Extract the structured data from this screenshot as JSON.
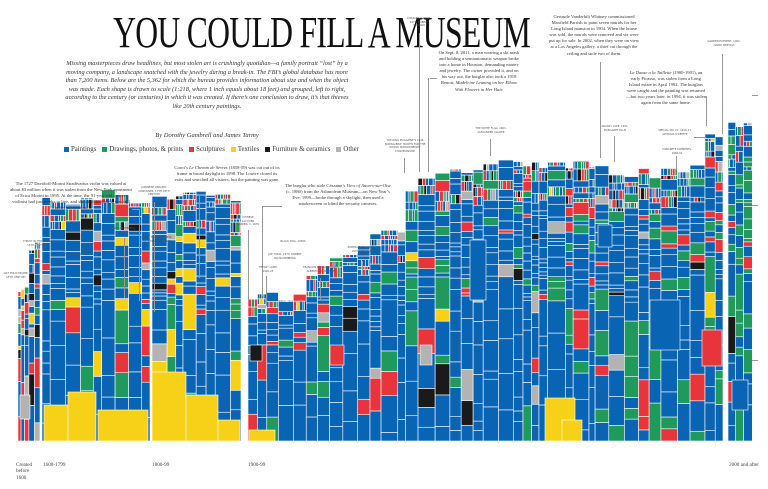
{
  "header": {
    "title": "YOU COULD FILL A MUSEUM",
    "subtitle": "Missing masterpieces draw headlines, but most stolen art is crushingly quotidian—a family portrait “lost” by a moving company, a landscape snatched with the jewelry during a break-in. The FBI’s global database has more than 7,200 items. Below are the 5,362 for which the bureau provides information about size and when the object was made. Each shape is drawn to scale (1:218, where 1 inch equals about 18 feet) and grouped, left to right, according to the century (or centuries) in which it was created. If there’s one conclusion to draw, it’s that thieves like 20th century paintings.",
    "byline": "By Dorothy Gambrell and James Tarmy"
  },
  "legend": [
    {
      "label": "Paintings",
      "color": "#0a64b4"
    },
    {
      "label": "Drawings, photos, & prints",
      "color": "#1f9a5c"
    },
    {
      "label": "Sculptures",
      "color": "#e8343b"
    },
    {
      "label": "Textiles",
      "color": "#f7d117"
    },
    {
      "label": "Furniture & ceramics",
      "color": "#1a1a1a"
    },
    {
      "label": "Other",
      "color": "#b3b3b3"
    }
  ],
  "chart_data": {
    "type": "treemap",
    "title": "YOU COULD FILL A MUSEUM",
    "categories": [
      "Created before 1600",
      "1600-1799",
      "1800-99",
      "1900-99",
      "2000 and after"
    ],
    "series": [
      {
        "name": "Paintings"
      },
      {
        "name": "Drawings, photos, & prints"
      },
      {
        "name": "Sculptures"
      },
      {
        "name": "Textiles"
      },
      {
        "name": "Furniture & ceramics"
      },
      {
        "name": "Other"
      }
    ],
    "scale": "1:218"
  },
  "axis": {
    "before_1600": "Created before 1600",
    "c1600_1799": "1600-1799",
    "c1800s": "1800-99",
    "c1900s": "1900-99",
    "c2000": "2000 and after"
  },
  "notes": [
    {
      "id": "stradivarius",
      "parts": [
        {
          "t": "The 1727 Davidoff-Morini Stradivarius violin was valued at about $3 million when it was stolen from the New York apartment of Erica Morini in 1995. At the time, the 91-year-old concert violinist had just weeks to live, and she died thinking it was still in her possession."
        }
      ]
    },
    {
      "id": "corot",
      "parts": [
        {
          "t": "Corot’s "
        },
        {
          "t": "Le Chemin de Sèvres",
          "i": true
        },
        {
          "t": " (1858-59) was cut out of its frame in broad daylight in 1998. The Louvre closed its exits and searched all visitors, but the painting was gone."
        }
      ]
    },
    {
      "id": "cezanne",
      "parts": [
        {
          "t": "The burglar who stole Cézanne’s "
        },
        {
          "t": "View of Auvers-sur-Oise",
          "i": true
        },
        {
          "t": " (c. 1880) from the Ashmolean Museum—on New Year’s Eve, 1999—broke through a skylight, then used a smokescreen to blind the security cameras."
        }
      ]
    },
    {
      "id": "renoir",
      "parts": [
        {
          "t": "On Sept. 8, 2011, a man wearing a ski mask and holding a semiautomatic weapon broke into a home in Houston, demanding money and jewelry. The owner provided it, and on his way out, the burglar also took a 1918 Renoir, "
        },
        {
          "t": "Madeleine Leaning on her Elbow With Flowers in Her Hair.",
          "i": true
        }
      ]
    },
    {
      "id": "parrish",
      "parts": [
        {
          "t": "Gertrude Vanderbilt Whitney commissioned Maxfield Parrish to paint seven murals for her Long Island mansion in 1904. When the house was sold, the murals were removed and six were put up for sale. In 2002, when they were on view at a Los Angeles gallery, a thief cut through the ceiling and stole two of them."
        }
      ]
    },
    {
      "id": "picasso",
      "parts": [
        {
          "t": "La Danse a la Taillette",
          "i": true
        },
        {
          "t": " (1900-1901), an early Picasso, was stolen from a Long Island estate in April 1992. The burglars were caught and the painting was returned—but two years later, in 1994, it was stolen again from the same home."
        }
      ]
    }
  ],
  "tags": [
    {
      "id": "japanese",
      "text": "Japanese ceramic container, 17th-18th century"
    },
    {
      "id": "teapot",
      "text": "Twelve-ten tea, 1860s"
    },
    {
      "id": "egret",
      "text": "Great egret, c. 1830-32, John J. Audubon"
    },
    {
      "id": "lacquer",
      "text": "Chinese lacquer screen, c. 1670"
    },
    {
      "id": "blackdog",
      "text": "Black dog, 1950s"
    },
    {
      "id": "rauschenberg",
      "text": "Joe Toma, 1973, Robert Rauschenberg"
    },
    {
      "id": "tiffany",
      "text": "Tiffany lamp, 1920-25"
    },
    {
      "id": "giacometti",
      "text": "François Bernard, 1951, Alberto Giacometti"
    },
    {
      "id": "cassatt",
      "text": "Portrait of a girl, c. 1875-1880, Mary Cassatt"
    },
    {
      "id": "belt",
      "text": "The Ring magazine’s 1946 boxing belt trophy for the world middleweight championship"
    },
    {
      "id": "chaparral",
      "text": "Chaparral etch, 1971, Robert Graham"
    },
    {
      "id": "calder",
      "text": "The white flag, 1961, Alexander Calder"
    },
    {
      "id": "ellis",
      "text": "Grassy lake, 1951, Margaret Ellis"
    },
    {
      "id": "okeeffe",
      "text": "Special No. 21, 1916-17, Georgia O’Keeffe"
    },
    {
      "id": "concrete",
      "text": "Concrete elements, 1960-61"
    },
    {
      "id": "bertoia",
      "text": "Garden element, 1962, Harry Bertoia"
    },
    {
      "id": "rosenbaum",
      "text": "Scroll with text by the Baal Shem Tov"
    },
    {
      "id": "christ",
      "text": "Christ in the tomb, 15th century"
    },
    {
      "id": "polychrome",
      "text": "Gilt polychrome, 15th century"
    }
  ]
}
